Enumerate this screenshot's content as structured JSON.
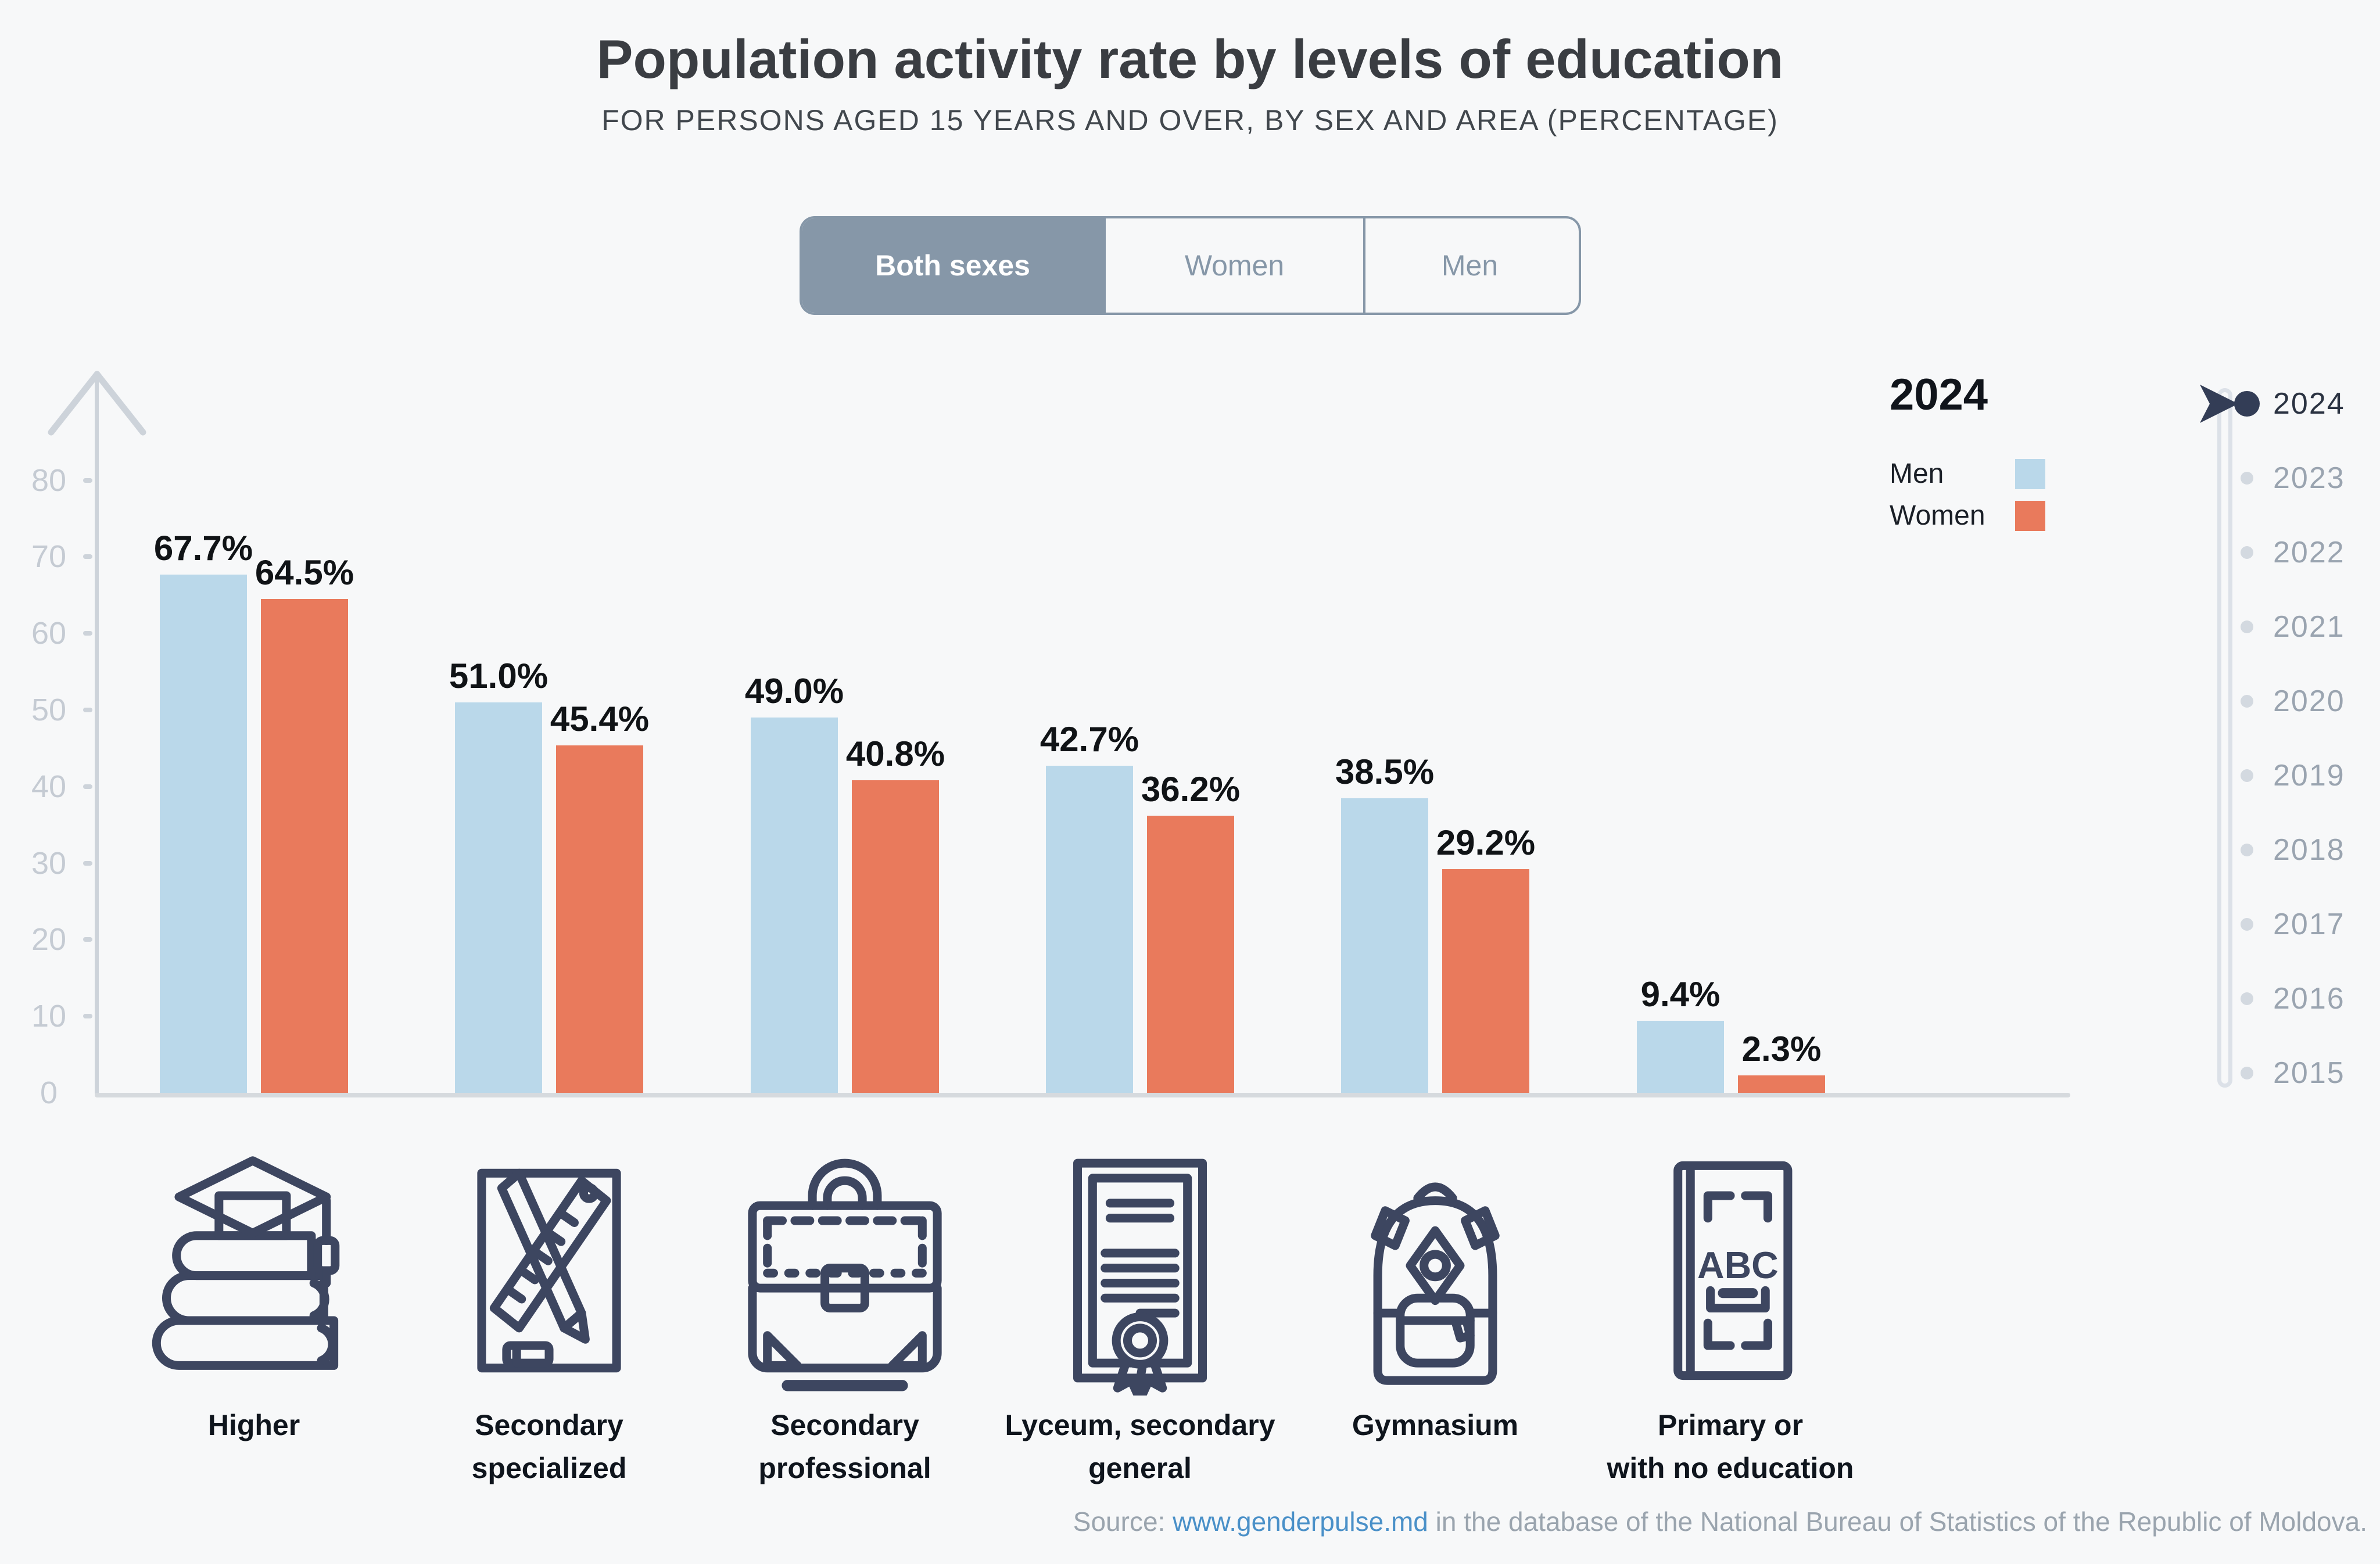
{
  "header": {
    "title": "Population activity rate by levels of education",
    "subtitle": "FOR PERSONS AGED 15 YEARS AND OVER, BY SEX AND AREA (PERCENTAGE)"
  },
  "tabs": [
    {
      "label": "Both sexes",
      "selected": true
    },
    {
      "label": "Women",
      "selected": false
    },
    {
      "label": "Men",
      "selected": false
    }
  ],
  "y_axis": {
    "ticks": [
      0,
      10,
      20,
      30,
      40,
      50,
      60,
      70,
      80
    ]
  },
  "chart_data": {
    "type": "bar",
    "title": "Population activity rate by levels of education",
    "subtitle": "FOR PERSONS AGED 15 YEARS AND OVER, BY SEX AND AREA (PERCENTAGE)",
    "year": "2024",
    "categories": [
      "Higher",
      "Secondary specialized",
      "Secondary professional",
      "Lyceum, secondary general",
      "Gymnasium",
      "Primary or with no education"
    ],
    "series": [
      {
        "name": "Men",
        "color": "#bad8ea",
        "values": [
          67.7,
          51.0,
          49.0,
          42.7,
          38.5,
          9.4
        ],
        "labels": [
          "67.7%",
          "51.0%",
          "49.0%",
          "42.7%",
          "38.5%",
          "9.4%"
        ]
      },
      {
        "name": "Women",
        "color": "#e97a5c",
        "values": [
          64.5,
          45.4,
          40.8,
          36.2,
          29.2,
          2.3
        ],
        "labels": [
          "64.5%",
          "45.4%",
          "40.8%",
          "36.2%",
          "29.2%",
          "2.3%"
        ]
      }
    ],
    "ylim": [
      0,
      80
    ],
    "grid": false,
    "legend_position": "right",
    "value_suffix": "%"
  },
  "legend": {
    "year": "2024",
    "items": [
      {
        "label": "Men",
        "color": "#bad8ea"
      },
      {
        "label": "Women",
        "color": "#e97a5c"
      }
    ]
  },
  "timeline": {
    "selected": "2024",
    "years": [
      "2024",
      "2023",
      "2022",
      "2021",
      "2020",
      "2019",
      "2018",
      "2017",
      "2016",
      "2015"
    ]
  },
  "categories": [
    {
      "label": "Higher",
      "icon": "graduation-books-icon"
    },
    {
      "label": "Secondary\nspecialized",
      "icon": "ruler-pencil-icon"
    },
    {
      "label": "Secondary\nprofessional",
      "icon": "briefcase-icon"
    },
    {
      "label": "Lyceum, secondary\ngeneral",
      "icon": "diploma-icon"
    },
    {
      "label": "Gymnasium",
      "icon": "backpack-icon"
    },
    {
      "label": "Primary or\nwith no education",
      "icon": "abc-book-icon"
    }
  ],
  "source": {
    "prefix": "Source: ",
    "link_text": "www.genderpulse.md",
    "suffix": " in the database of the National Bureau of Statistics of the Republic of Moldova."
  },
  "colors": {
    "background": "#f7f8f9",
    "bar_men": "#bad8ea",
    "bar_women": "#e97a5c",
    "tab_slate": "#8697a8",
    "axis": "#cdd3da",
    "timeline_active": "#333d56",
    "timeline_inactive": "#d3d9e0",
    "link": "#4a90c8",
    "icon_stroke": "#3d4660"
  }
}
